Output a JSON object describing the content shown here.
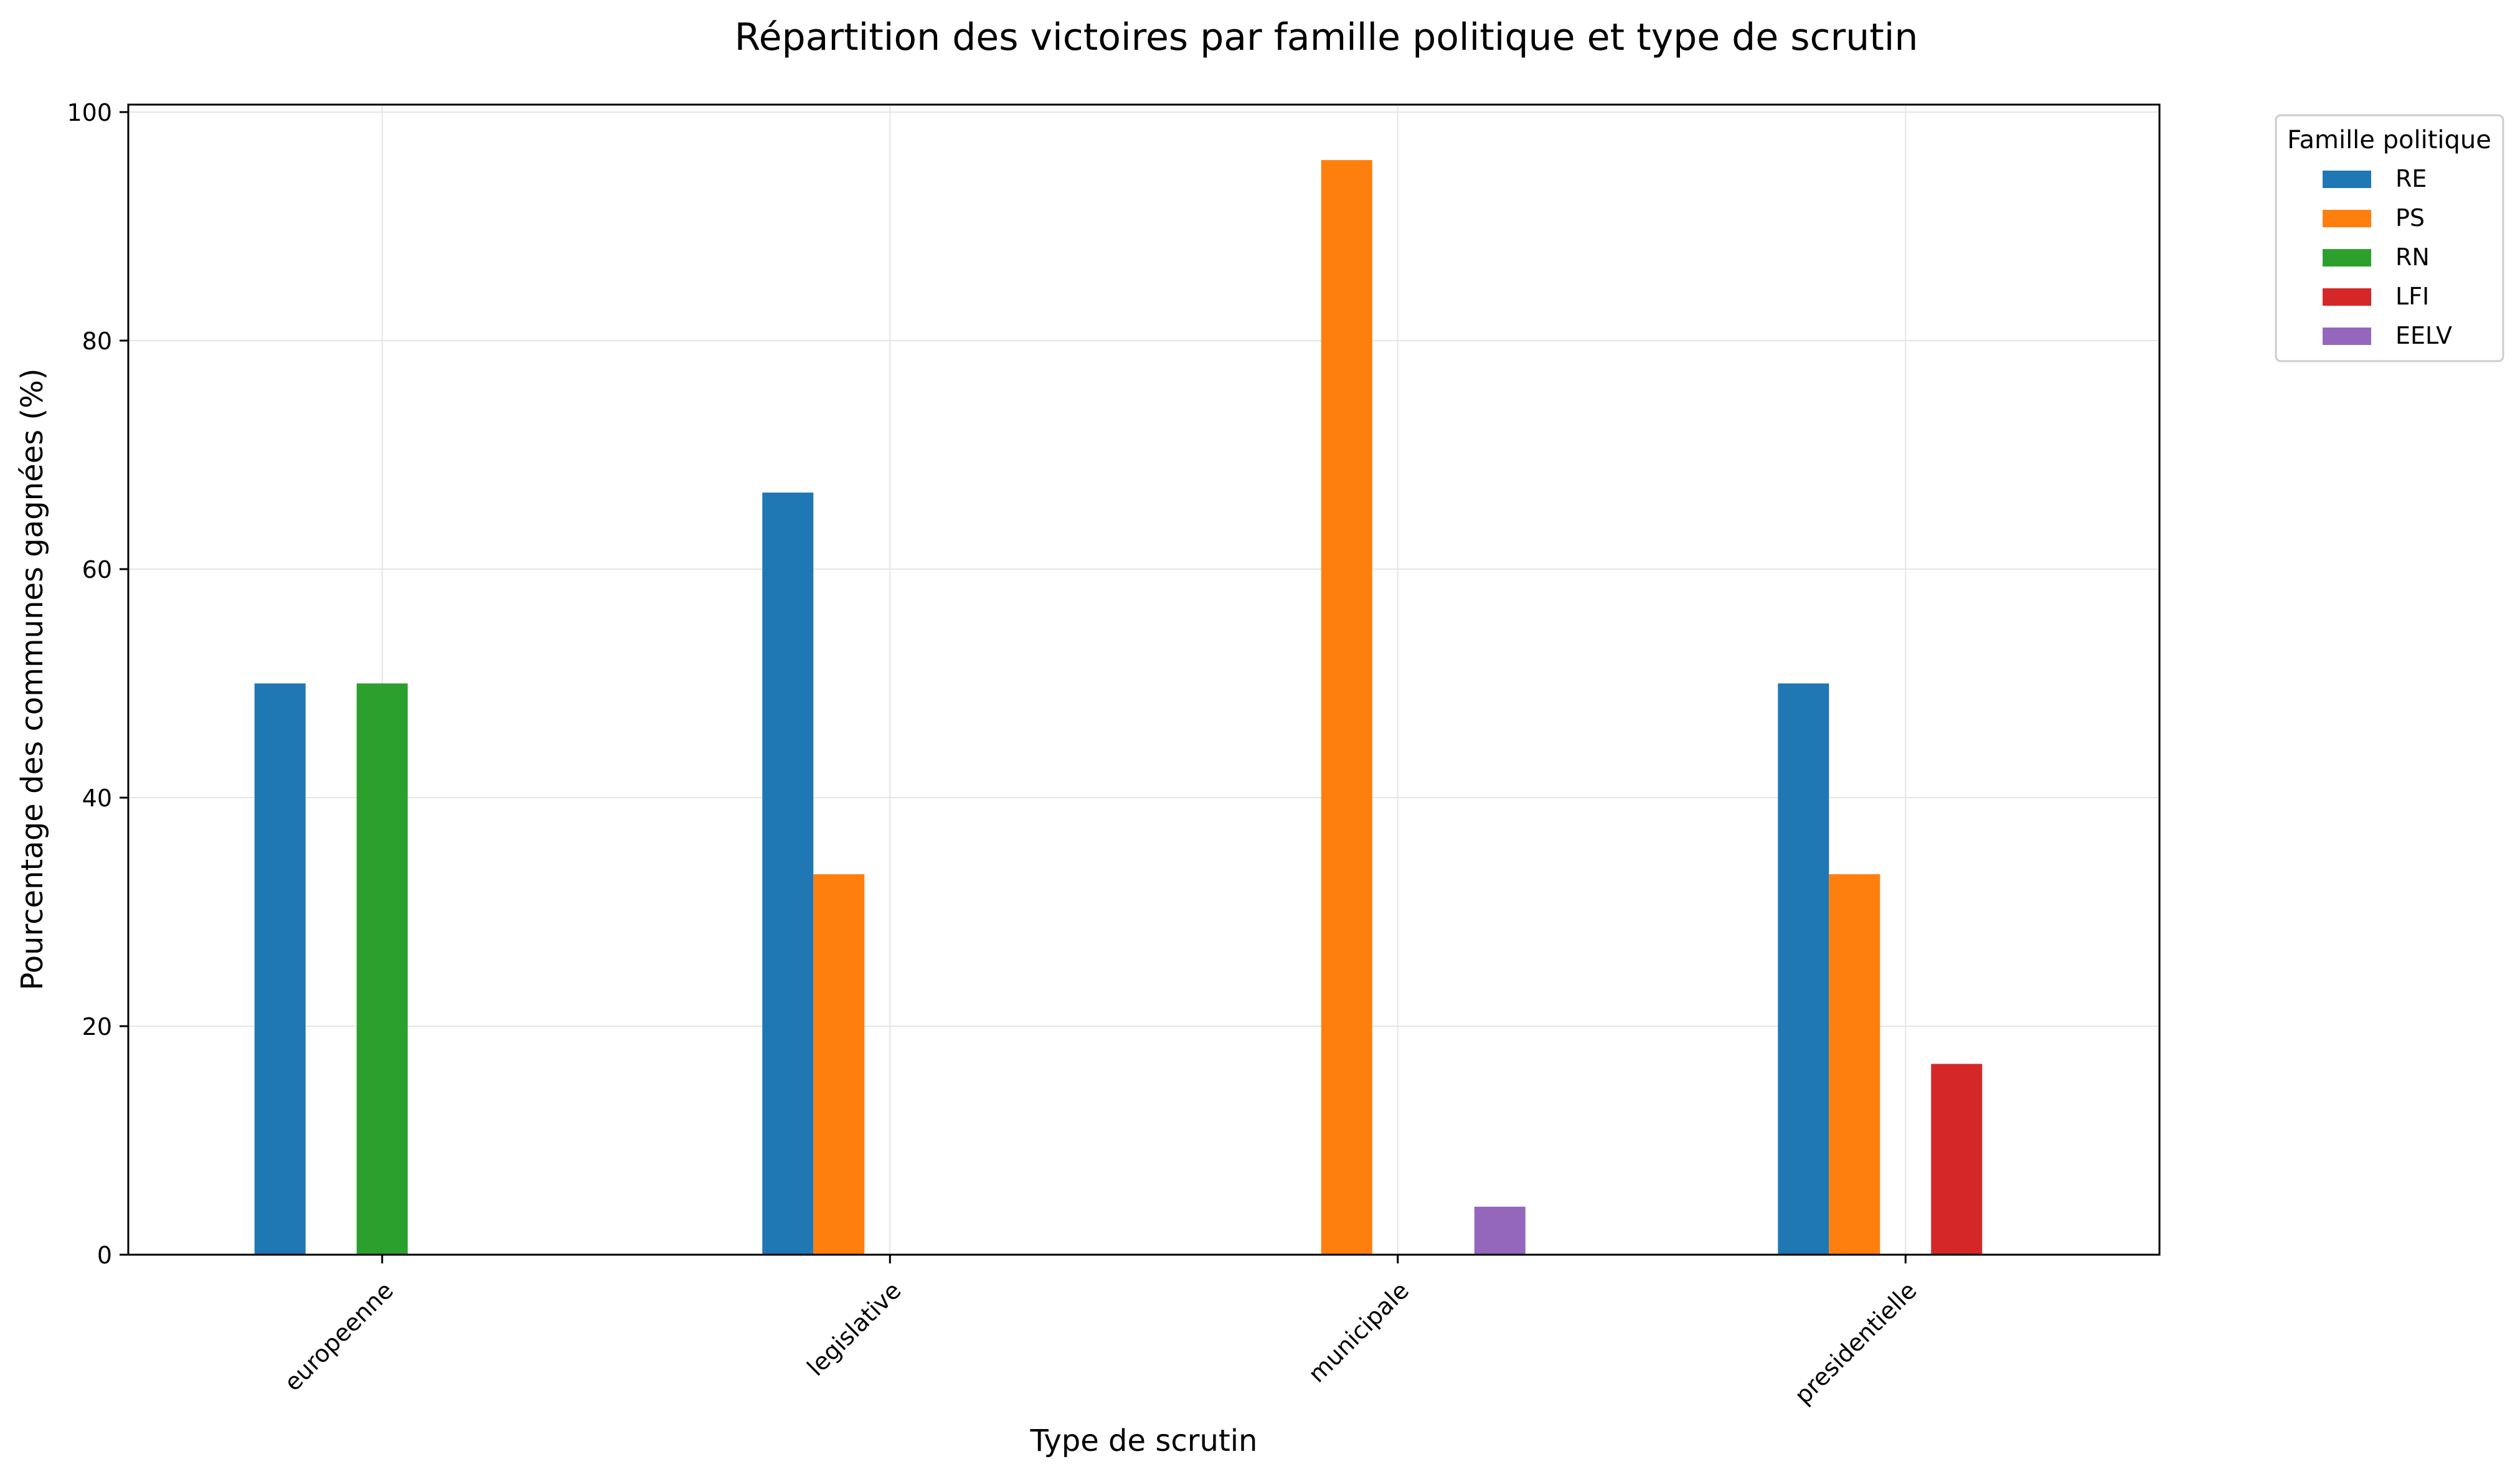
{
  "chart_data": {
    "type": "bar",
    "title": "Répartition des victoires par famille politique et type de scrutin",
    "xlabel": "Type de scrutin",
    "ylabel": "Pourcentage des communes gagnées (%)",
    "categories": [
      "europeenne",
      "legislative",
      "municipale",
      "presidentielle"
    ],
    "ylim": [
      0,
      100
    ],
    "yticks": [
      0,
      20,
      40,
      60,
      80,
      100
    ],
    "grid": true,
    "legend": {
      "title": "Famille politique",
      "placement": "outside top-right"
    },
    "series": [
      {
        "name": "RE",
        "color": "#1f77b4",
        "values": [
          50.0,
          66.7,
          0,
          50.0
        ]
      },
      {
        "name": "PS",
        "color": "#ff7f0e",
        "values": [
          0,
          33.3,
          95.8,
          33.3
        ]
      },
      {
        "name": "RN",
        "color": "#2ca02c",
        "values": [
          50.0,
          0,
          0,
          0
        ]
      },
      {
        "name": "LFI",
        "color": "#d62728",
        "values": [
          0,
          0,
          0,
          16.7
        ]
      },
      {
        "name": "EELV",
        "color": "#9467bd",
        "values": [
          0,
          0,
          4.2,
          0
        ]
      }
    ]
  }
}
